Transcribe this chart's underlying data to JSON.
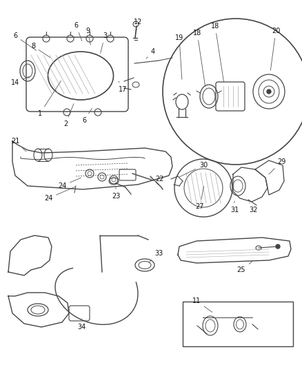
{
  "bg_color": "#f0f0f0",
  "line_color": "#333333",
  "text_color": "#111111",
  "fig_width": 4.38,
  "fig_height": 5.33,
  "dpi": 100
}
